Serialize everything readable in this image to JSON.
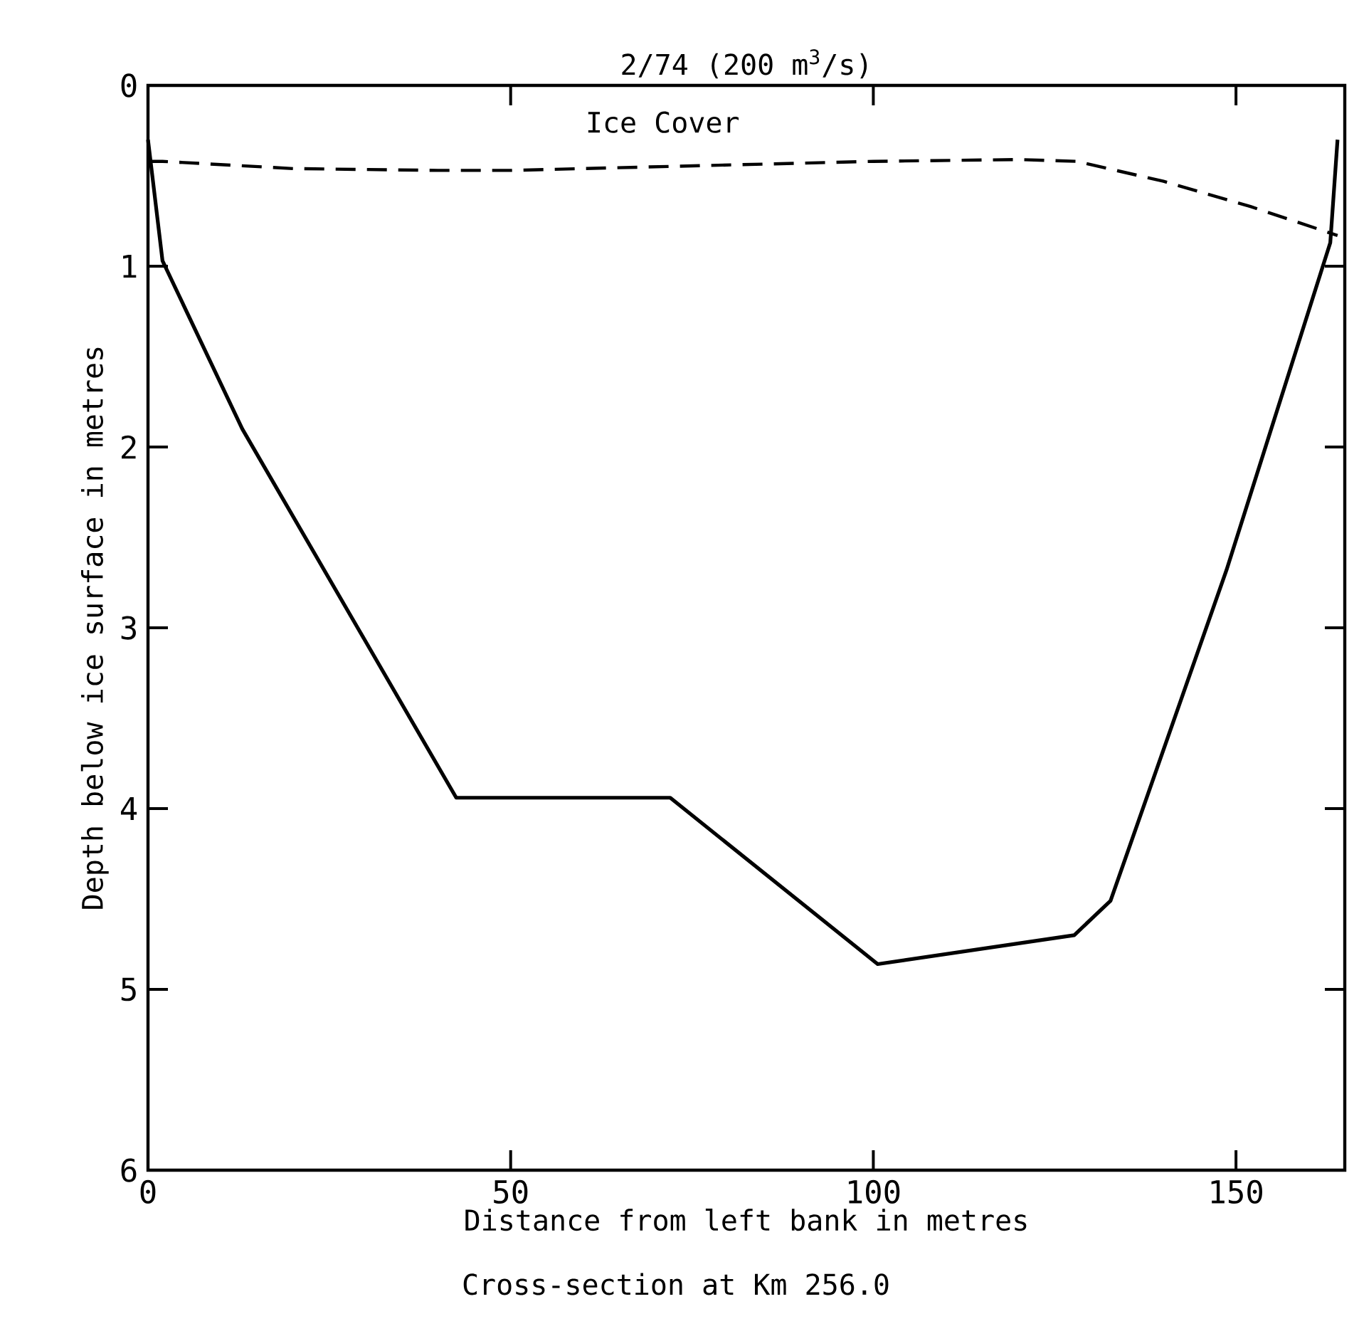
{
  "chart_data": {
    "type": "line",
    "title": "2/74 (200 m$^{3}$/s)",
    "xlabel": "Distance from left bank in metres",
    "ylabel": "Depth below ice surface in metres",
    "annotations": [
      "Ice Cover",
      "Cross-section at Km 256.0"
    ],
    "xlim": [
      0,
      165
    ],
    "ylim": [
      6,
      0
    ],
    "xticks": [
      0,
      50,
      100,
      150
    ],
    "yticks": [
      0,
      1,
      2,
      3,
      4,
      5,
      6
    ],
    "series": [
      {
        "line_style": "dashed",
        "color": "#000000",
        "x": [
          0,
          2,
          20,
          40,
          50,
          60,
          80,
          100,
          120,
          128,
          140,
          152,
          164
        ],
        "values": [
          0.42,
          0.42,
          0.46,
          0.47,
          0.47,
          0.46,
          0.44,
          0.42,
          0.41,
          0.42,
          0.53,
          0.67,
          0.83
        ]
      },
      {
        "line_style": "solid",
        "color": "#000000",
        "x": [
          0,
          2,
          13,
          42.5,
          72,
          100.6,
          127.7,
          132.7,
          148.7,
          163,
          164
        ],
        "values": [
          0.3,
          0.97,
          1.9,
          3.94,
          3.94,
          4.86,
          4.7,
          4.51,
          2.68,
          0.87,
          0.3
        ]
      }
    ]
  }
}
